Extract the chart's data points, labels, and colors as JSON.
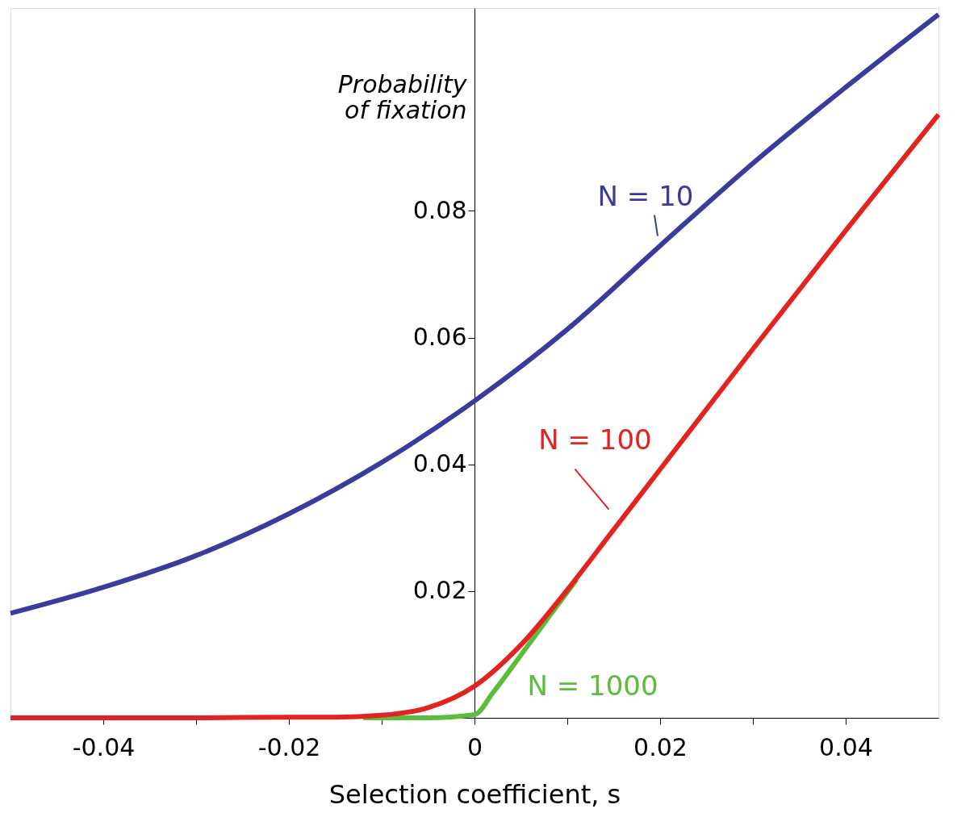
{
  "chart_data": {
    "type": "line",
    "xlabel": "Selection coefficient, s",
    "ylabel": "Probability of fixation",
    "xlim": [
      -0.05,
      0.05
    ],
    "ylim": [
      0,
      0.112
    ],
    "xticks": [
      -0.04,
      {
        "value": -0.03,
        "label": null
      },
      -0.02,
      {
        "value": -0.01,
        "label": null
      },
      0,
      {
        "value": 0.01,
        "label": null
      },
      0.02,
      {
        "value": 0.03,
        "label": null
      },
      0.04
    ],
    "yticks": [
      0.02,
      0.04,
      0.06,
      0.08
    ],
    "grid": false,
    "legend": false,
    "line_style": "solid",
    "marker": "none",
    "series": [
      {
        "name": "N = 10",
        "color": "#3b3b9e",
        "x": [
          -0.05,
          -0.04,
          -0.03,
          -0.02,
          -0.01,
          0,
          0.01,
          0.02,
          0.03,
          0.04,
          0.05
        ],
        "values": [
          0.0165,
          0.0206,
          0.0256,
          0.0322,
          0.0403,
          0.05,
          0.0613,
          0.0745,
          0.0875,
          0.0995,
          0.111
        ]
      },
      {
        "name": "N = 1000",
        "color": "#5cbd3c",
        "x": [
          -0.012,
          -0.005,
          0,
          0.002,
          0.005,
          0.008,
          0.011
        ],
        "values": [
          0,
          0,
          0.0005,
          0.004,
          0.0099,
          0.0159,
          0.0218
        ]
      },
      {
        "name": "N = 100",
        "color": "#e3231f",
        "x": [
          -0.05,
          -0.03,
          -0.02,
          -0.015,
          -0.01,
          -0.005,
          0,
          0.005,
          0.01,
          0.015,
          0.02,
          0.03,
          0.04,
          0.05
        ],
        "values": [
          0,
          0,
          0.0001,
          0.0001,
          0.0004,
          0.0016,
          0.005,
          0.0115,
          0.0202,
          0.0297,
          0.0392,
          0.0582,
          0.0769,
          0.0952
        ]
      }
    ]
  }
}
